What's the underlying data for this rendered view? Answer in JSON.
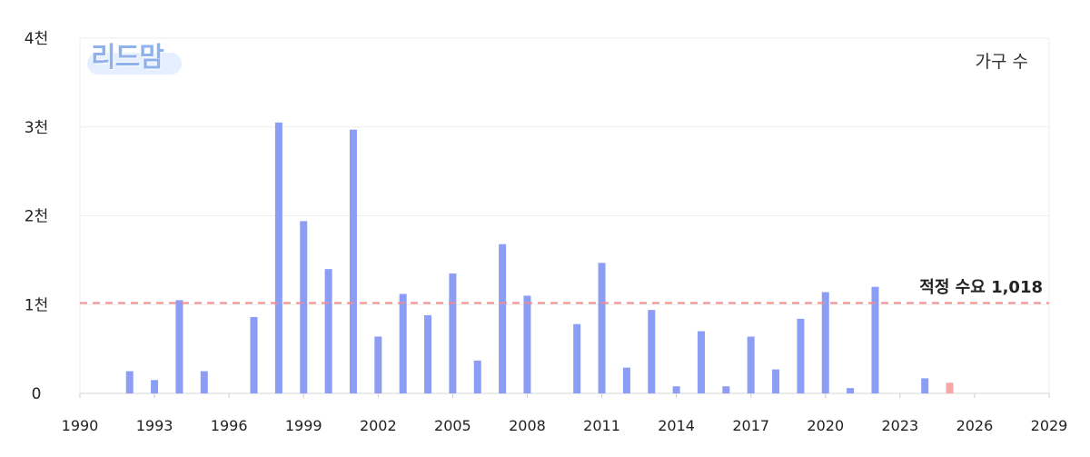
{
  "chart_data": {
    "type": "bar",
    "legend": "가구 수",
    "x_ticks": [
      "1990",
      "1993",
      "1996",
      "1999",
      "2002",
      "2005",
      "2008",
      "2011",
      "2014",
      "2017",
      "2020",
      "2023",
      "2026",
      "2029"
    ],
    "y_ticks": [
      "0",
      "1천",
      "2천",
      "3천",
      "4천"
    ],
    "ylim": [
      0,
      4000
    ],
    "xlim": [
      1990,
      2029
    ],
    "reference_line": {
      "label": "적정 수요",
      "value_text": "1,018",
      "value": 1018,
      "color": "#f28c8c"
    },
    "bar_color": "#8c9df5",
    "projected_color": "#f6a7a7",
    "series": [
      {
        "name": "가구 수",
        "points": [
          {
            "x": 1992,
            "y": 250
          },
          {
            "x": 1993,
            "y": 150
          },
          {
            "x": 1994,
            "y": 1050
          },
          {
            "x": 1995,
            "y": 250
          },
          {
            "x": 1997,
            "y": 860
          },
          {
            "x": 1998,
            "y": 3050
          },
          {
            "x": 1999,
            "y": 1940
          },
          {
            "x": 2000,
            "y": 1400
          },
          {
            "x": 2001,
            "y": 2970
          },
          {
            "x": 2002,
            "y": 640
          },
          {
            "x": 2003,
            "y": 1120
          },
          {
            "x": 2004,
            "y": 880
          },
          {
            "x": 2005,
            "y": 1350
          },
          {
            "x": 2006,
            "y": 370
          },
          {
            "x": 2007,
            "y": 1680
          },
          {
            "x": 2008,
            "y": 1100
          },
          {
            "x": 2010,
            "y": 780
          },
          {
            "x": 2011,
            "y": 1470
          },
          {
            "x": 2012,
            "y": 290
          },
          {
            "x": 2013,
            "y": 940
          },
          {
            "x": 2014,
            "y": 80
          },
          {
            "x": 2015,
            "y": 700
          },
          {
            "x": 2016,
            "y": 80
          },
          {
            "x": 2017,
            "y": 640
          },
          {
            "x": 2018,
            "y": 270
          },
          {
            "x": 2019,
            "y": 840
          },
          {
            "x": 2020,
            "y": 1140
          },
          {
            "x": 2021,
            "y": 60
          },
          {
            "x": 2022,
            "y": 1200
          },
          {
            "x": 2024,
            "y": 170
          }
        ]
      },
      {
        "name": "",
        "projected": true,
        "points": [
          {
            "x": 2025,
            "y": 120
          }
        ]
      }
    ]
  },
  "logo_text": "리드맘"
}
